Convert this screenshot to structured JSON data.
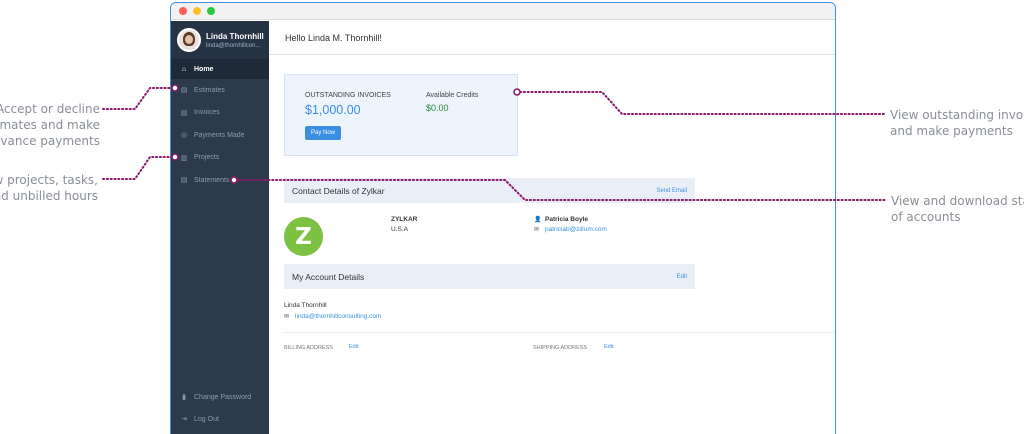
{
  "app": {
    "user_name": "Linda Thornhill",
    "user_email": "linda@thornhillcon...",
    "greeting": "Hello Linda M. Thornhill!"
  },
  "sidebar": {
    "items": [
      {
        "label": "Home",
        "icon": "home-icon"
      },
      {
        "label": "Estimates",
        "icon": "document-icon"
      },
      {
        "label": "Invoices",
        "icon": "document-icon"
      },
      {
        "label": "Payments Made",
        "icon": "payment-icon"
      },
      {
        "label": "Projects",
        "icon": "projects-icon"
      },
      {
        "label": "Statements",
        "icon": "document-icon"
      }
    ],
    "bottom": [
      {
        "label": "Change Password",
        "icon": "lock-icon"
      },
      {
        "label": "Log Out",
        "icon": "logout-icon"
      }
    ]
  },
  "invoices": {
    "outstanding_label": "OUTSTANDING INVOICES",
    "outstanding_amount": "$1,000.00",
    "credits_label": "Available Credits",
    "credits_amount": "$0.00",
    "pay_button": "Pay Now"
  },
  "contact": {
    "title": "Contact Details of Zylkar",
    "send_email": "Send Email",
    "logo_letter": "Z",
    "company": "ZYLKAR",
    "country": "U.S.A",
    "person": "Patricia Boyle",
    "email": "patriciab@zillum.com"
  },
  "account": {
    "title": "My Account Details",
    "edit": "Edit",
    "name": "Linda Thornhill",
    "email": "linda@thornhillconsulting.com",
    "billing_label": "BILLING ADDRESS",
    "billing_edit": "Edit",
    "shipping_label": "SHIPPING ADDRESS",
    "shipping_edit": "Edit"
  },
  "annotations": {
    "estimates_line1": "Accept or decline",
    "estimates_line2": "timates and make",
    "estimates_line3": "dvance payments",
    "projects_line1": "ew projects, tasks,",
    "projects_line2": "nd unbilled hours",
    "invoices_line1": "View outstanding invoice",
    "invoices_line2": "and make payments",
    "statements_line1": "View and download stat",
    "statements_line2": "of accounts"
  },
  "colors": {
    "accent": "#3a8fe0",
    "sidebar": "#2c3a4c",
    "annotation_dot": "#8b1a6b",
    "credit_green": "#2b8a3e",
    "logo_green": "#7cc142"
  }
}
